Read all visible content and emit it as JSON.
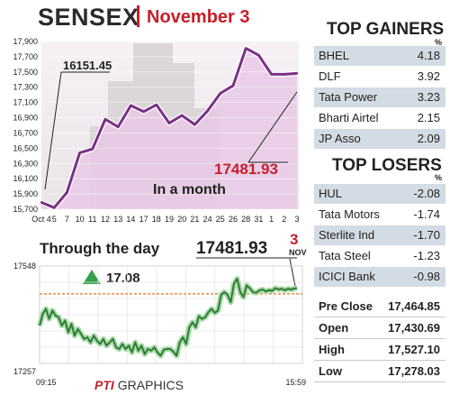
{
  "header": {
    "title": "SENSEX",
    "date": "November 3"
  },
  "top_gainers": {
    "title": "TOP GAINERS",
    "unit": "%",
    "items": [
      {
        "name": "BHEL",
        "value": "4.18"
      },
      {
        "name": "DLF",
        "value": "3.92"
      },
      {
        "name": "Tata Power",
        "value": "3.23"
      },
      {
        "name": "Bharti Airtel",
        "value": "2.15"
      },
      {
        "name": "JP Asso",
        "value": "2.09"
      }
    ]
  },
  "top_losers": {
    "title": "TOP LOSERS",
    "unit": "%",
    "items": [
      {
        "name": "HUL",
        "value": "-2.08"
      },
      {
        "name": "Tata Motors",
        "value": "-1.74"
      },
      {
        "name": "Sterlite Ind",
        "value": "-1.70"
      },
      {
        "name": "Tata Steel",
        "value": "-1.23"
      },
      {
        "name": "ICICI Bank",
        "value": "-0.98"
      }
    ]
  },
  "stats": [
    {
      "name": "Pre Close",
      "value": "17,464.85"
    },
    {
      "name": "Open",
      "value": "17,430.69"
    },
    {
      "name": "High",
      "value": "17,527.10"
    },
    {
      "name": "Low",
      "value": "17,278.03"
    }
  ],
  "footer": {
    "logo": "PTI",
    "text": "GRAPHICS"
  },
  "colors": {
    "accent_red": "#c81e2a",
    "month_line": "#7a2f86",
    "month_fill": "#e9c9e6",
    "day_line": "#2f7a34",
    "day_glow": "#a7dba8",
    "change_up": "#34a049",
    "prev_close_line": "#e8741e",
    "table_shade": "#d3dbe4"
  },
  "chart_data": [
    {
      "type": "line",
      "title": "",
      "annotations": [
        "16151.45",
        "17481.93",
        "In a month"
      ],
      "x_tick_labels": [
        "Oct 4",
        "5",
        "7",
        "10",
        "11",
        "12",
        "13",
        "14",
        "17",
        "18",
        "19",
        "20",
        "21",
        "24",
        "25",
        "26",
        "28",
        "31",
        "1",
        "2",
        "3"
      ],
      "ytick_labels": [
        "17,900",
        "17,700",
        "17,500",
        "17,300",
        "17,100",
        "16,900",
        "16,700",
        "16,500",
        "16,300",
        "16,100",
        "15,900",
        "15,700"
      ],
      "ylim": [
        15700,
        17900
      ],
      "x": [
        "Oct 4",
        "5",
        "7",
        "10",
        "11",
        "12",
        "13",
        "14",
        "17",
        "18",
        "19",
        "20",
        "21",
        "24",
        "25",
        "26",
        "28",
        "31",
        "1",
        "2",
        "3"
      ],
      "values": [
        15790,
        15720,
        15920,
        16440,
        16490,
        16880,
        16780,
        17060,
        16980,
        17070,
        16830,
        16930,
        16810,
        16990,
        17220,
        17320,
        17810,
        17720,
        17470,
        17470,
        17481.93
      ]
    },
    {
      "type": "line",
      "title": "Through the day",
      "annotations": [
        "17481.93",
        "17.08"
      ],
      "marker_day": "3",
      "marker_month": "NOV",
      "ytick_labels": [
        "17548",
        "17257"
      ],
      "ylim": [
        17257,
        17548
      ],
      "xtick_labels": [
        "09:15",
        "15:59"
      ],
      "prev_close": 17464.85,
      "x": [
        0,
        5,
        10,
        15,
        20,
        25,
        30,
        35,
        40,
        45,
        50,
        55,
        60,
        65,
        70,
        75,
        80,
        85,
        90,
        95,
        100,
        105,
        110,
        115,
        120,
        125,
        130,
        135,
        140,
        145,
        150,
        155,
        160,
        165,
        170,
        175,
        180,
        185,
        190,
        195,
        200,
        205,
        210,
        215,
        220,
        225,
        230,
        235,
        240,
        245,
        250,
        255,
        260,
        265,
        270,
        275,
        280,
        285,
        290,
        295,
        300,
        305,
        310,
        315,
        320,
        325,
        330,
        335,
        340,
        345,
        350,
        355,
        360,
        365,
        370,
        375,
        380,
        385,
        390,
        395,
        400,
        404
      ],
      "values": [
        17370,
        17405,
        17420,
        17390,
        17415,
        17400,
        17395,
        17370,
        17385,
        17350,
        17375,
        17340,
        17360,
        17345,
        17330,
        17335,
        17320,
        17340,
        17325,
        17315,
        17330,
        17310,
        17320,
        17330,
        17305,
        17300,
        17315,
        17300,
        17310,
        17290,
        17320,
        17295,
        17310,
        17285,
        17300,
        17295,
        17305,
        17290,
        17280,
        17298,
        17300,
        17300,
        17292,
        17280,
        17320,
        17335,
        17315,
        17365,
        17380,
        17365,
        17398,
        17390,
        17395,
        17410,
        17420,
        17408,
        17415,
        17462,
        17470,
        17462,
        17440,
        17495,
        17510,
        17470,
        17455,
        17490,
        17482,
        17470,
        17468,
        17475,
        17478,
        17472,
        17476,
        17474,
        17482,
        17478,
        17480,
        17476,
        17480,
        17478,
        17481,
        17481.93
      ]
    }
  ]
}
